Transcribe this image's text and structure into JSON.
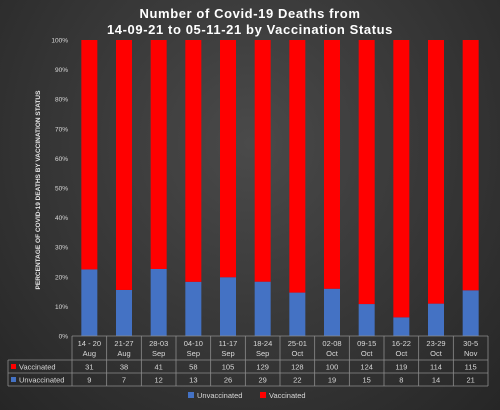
{
  "chart_data": {
    "type": "bar",
    "stacked": "percent",
    "title": [
      "Number of Covid-19 Deaths from",
      "14-09-21 to 05-11-21 by Vaccination Status"
    ],
    "ylabel": "PERCENTAGE OF COVID-19 DEATHS BY VACCINATION STATUS",
    "ylim": [
      0,
      100
    ],
    "yticks": [
      "0%",
      "10%",
      "20%",
      "30%",
      "40%",
      "50%",
      "60%",
      "70%",
      "80%",
      "90%",
      "100%"
    ],
    "grid": false,
    "legend": "bottom",
    "categories": [
      [
        "14 - 20",
        "Aug"
      ],
      [
        "21-27",
        "Aug"
      ],
      [
        "28-03",
        "Sep"
      ],
      [
        "04-10",
        "Sep"
      ],
      [
        "11-17",
        "Sep"
      ],
      [
        "18-24",
        "Sep"
      ],
      [
        "25-01",
        "Oct"
      ],
      [
        "02-08",
        "Oct"
      ],
      [
        "09-15",
        "Oct"
      ],
      [
        "16-22",
        "Oct"
      ],
      [
        "23-29",
        "Oct"
      ],
      [
        "30-5",
        "Nov"
      ]
    ],
    "series": [
      {
        "name": "Unvaccinated",
        "color": "#4472c4",
        "values": [
          9,
          7,
          12,
          13,
          26,
          29,
          22,
          19,
          15,
          8,
          14,
          21
        ]
      },
      {
        "name": "Vaccinated",
        "color": "#ff0000",
        "values": [
          31,
          38,
          41,
          58,
          105,
          129,
          128,
          100,
          124,
          119,
          114,
          115
        ]
      }
    ],
    "table_rows": [
      "Vaccinated",
      "Unvaccinated"
    ]
  }
}
